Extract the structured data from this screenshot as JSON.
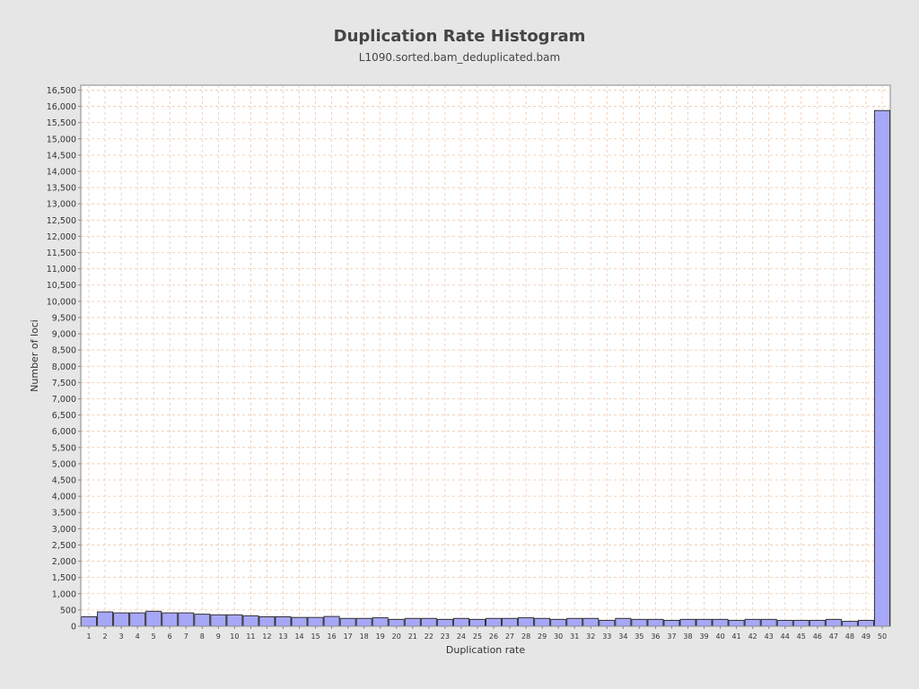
{
  "chart_data": {
    "type": "bar",
    "title": "Duplication Rate Histogram",
    "subtitle": "L1090.sorted.bam_deduplicated.bam",
    "xlabel": "Duplication rate",
    "ylabel": "Number of loci",
    "ylim": [
      0,
      16650
    ],
    "ytick_step": 500,
    "grid": true,
    "legend": "none",
    "categories": [
      "1",
      "2",
      "3",
      "4",
      "5",
      "6",
      "7",
      "8",
      "9",
      "10",
      "11",
      "12",
      "13",
      "14",
      "15",
      "16",
      "17",
      "18",
      "19",
      "20",
      "21",
      "22",
      "23",
      "24",
      "25",
      "26",
      "27",
      "28",
      "29",
      "30",
      "31",
      "32",
      "33",
      "34",
      "35",
      "36",
      "37",
      "38",
      "39",
      "40",
      "41",
      "42",
      "43",
      "44",
      "45",
      "46",
      "47",
      "48",
      "49",
      "50"
    ],
    "values": [
      290,
      440,
      410,
      410,
      460,
      410,
      410,
      370,
      350,
      350,
      320,
      290,
      290,
      270,
      270,
      300,
      240,
      240,
      260,
      210,
      240,
      240,
      210,
      240,
      210,
      240,
      240,
      260,
      240,
      210,
      240,
      240,
      180,
      240,
      210,
      210,
      180,
      210,
      210,
      210,
      180,
      210,
      210,
      180,
      180,
      180,
      210,
      150,
      180,
      15870
    ],
    "colors": {
      "bar_fill": "#a7a7f7",
      "bar_stroke": "#333333",
      "grid": "#f0c6a8",
      "plot_bg": "#ffffff",
      "page_bg": "#e6e6e6"
    }
  }
}
